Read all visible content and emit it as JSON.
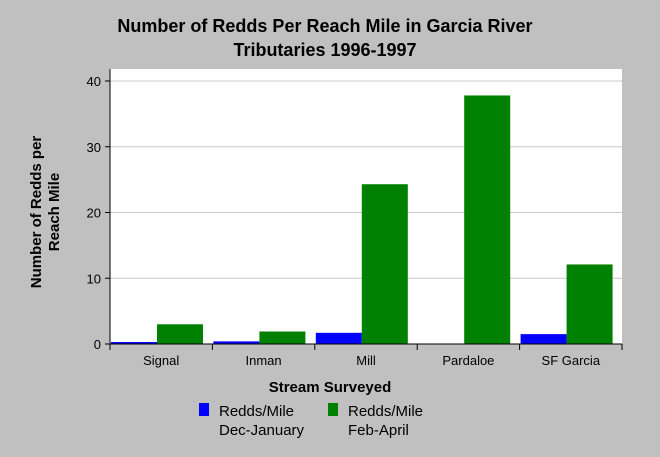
{
  "chart_data": {
    "type": "bar",
    "title_lines": [
      "Number of Redds Per Reach Mile in Garcia River",
      "Tributaries 1996-1997"
    ],
    "xlabel": "Stream Surveyed",
    "ylabel_lines": [
      "Number of Redds per",
      "Reach Mile"
    ],
    "categories": [
      "Signal",
      "Inman",
      "Mill",
      "Pardaloe",
      "SF Garcia"
    ],
    "series": [
      {
        "name_lines": [
          "Redds/Mile",
          "Dec-January"
        ],
        "color": "#0000ff",
        "values": [
          0.3,
          0.4,
          1.7,
          0,
          1.5
        ]
      },
      {
        "name_lines": [
          "Redds/Mile",
          "Feb-April"
        ],
        "color": "#008000",
        "values": [
          3.0,
          1.9,
          24.3,
          37.8,
          12.1
        ]
      }
    ],
    "ylim": [
      0,
      40
    ],
    "yticks": [
      0,
      10,
      20,
      30,
      40
    ],
    "grid": true,
    "legend_position": "bottom"
  }
}
